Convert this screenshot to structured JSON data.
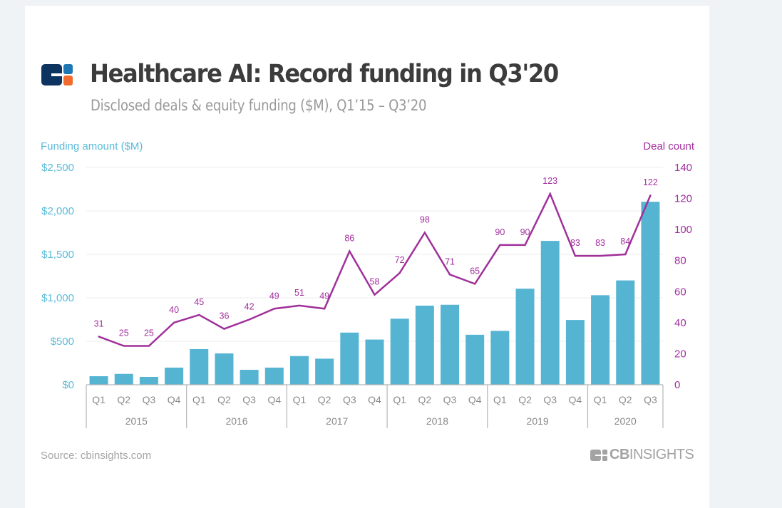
{
  "header": {
    "title": "Healthcare AI: Record funding in Q3'20",
    "subtitle": "Disclosed deals & equity funding ($M), Q1’15 – Q3’20",
    "logo_icon": "cb-insights-logo-icon"
  },
  "footer": {
    "source": "Source: cbinsights.com",
    "brand_bold": "CB",
    "brand_light": "INSIGHTS"
  },
  "colors": {
    "bars": "#56b4d3",
    "line": "#a0309a",
    "left_axis": "#5bbbd9",
    "right_axis": "#a32e9e",
    "logo_dark": "#0d3361",
    "logo_blue": "#1e77b5",
    "logo_orange": "#f26a2e"
  },
  "chart_data": {
    "type": "bar",
    "title": "Healthcare AI: Record funding in Q3'20",
    "subtitle": "Disclosed deals & equity funding ($M), Q1’15 – Q3’20",
    "xlabel": "",
    "ylabel": "Funding amount ($M)",
    "y2label": "Deal count",
    "ylim": [
      0,
      2500
    ],
    "y2lim": [
      0,
      140
    ],
    "yticks": [
      0,
      500,
      1000,
      1500,
      2000,
      2500
    ],
    "ytick_labels": [
      "$0",
      "$500",
      "$1,000",
      "$1,500",
      "$2,000",
      "$2,500"
    ],
    "y2ticks": [
      0,
      20,
      40,
      60,
      80,
      100,
      120,
      140
    ],
    "y2tick_labels": [
      "0",
      "20",
      "40",
      "60",
      "80",
      "100",
      "120",
      "140"
    ],
    "grid": true,
    "legend": "none",
    "categories": [
      "Q1",
      "Q2",
      "Q3",
      "Q4",
      "Q1",
      "Q2",
      "Q3",
      "Q4",
      "Q1",
      "Q2",
      "Q3",
      "Q4",
      "Q1",
      "Q2",
      "Q3",
      "Q4",
      "Q1",
      "Q2",
      "Q3",
      "Q4",
      "Q1",
      "Q2",
      "Q3"
    ],
    "year_groups": [
      {
        "label": "2015",
        "count": 4
      },
      {
        "label": "2016",
        "count": 4
      },
      {
        "label": "2017",
        "count": 4
      },
      {
        "label": "2018",
        "count": 4
      },
      {
        "label": "2019",
        "count": 4
      },
      {
        "label": "2020",
        "count": 3
      }
    ],
    "series": [
      {
        "name": "Funding amount ($M)",
        "type": "bar",
        "axis": "left",
        "values": [
          98,
          125,
          90,
          197,
          410,
          360,
          172,
          197,
          330,
          300,
          600,
          520,
          760,
          910,
          920,
          575,
          620,
          1105,
          1655,
          745,
          1030,
          1200,
          2105
        ]
      },
      {
        "name": "Deal count",
        "type": "line",
        "axis": "right",
        "values": [
          31,
          25,
          25,
          40,
          45,
          36,
          42,
          49,
          51,
          49,
          86,
          58,
          72,
          98,
          71,
          65,
          90,
          90,
          123,
          83,
          83,
          84,
          122
        ]
      }
    ]
  }
}
